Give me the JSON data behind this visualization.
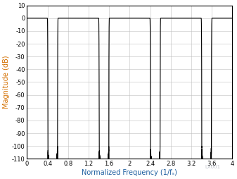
{
  "title": "",
  "xlabel": "Normalized Frequency (1/fₛ)",
  "ylabel": "Magnitude (dB)",
  "xlim": [
    0,
    4
  ],
  "ylim": [
    -110,
    10
  ],
  "xticks": [
    0,
    0.4,
    0.8,
    1.2,
    1.6,
    2.0,
    2.4,
    2.8,
    3.2,
    3.6,
    4.0
  ],
  "xtick_labels": [
    "0",
    "0.4",
    "0.8",
    "1.2",
    "1.6",
    "2",
    "2.4",
    "2.8",
    "3.2",
    "3.6",
    "4"
  ],
  "yticks": [
    10,
    0,
    -10,
    -20,
    -30,
    -40,
    -50,
    -60,
    -70,
    -80,
    -90,
    -100,
    -110
  ],
  "line_color": "#000000",
  "line_width": 0.8,
  "grid_color": "#c0c0c0",
  "background_color": "#ffffff",
  "axis_color": "#d47000",
  "xlabel_color": "#1e5fa0",
  "watermark": "LX001"
}
